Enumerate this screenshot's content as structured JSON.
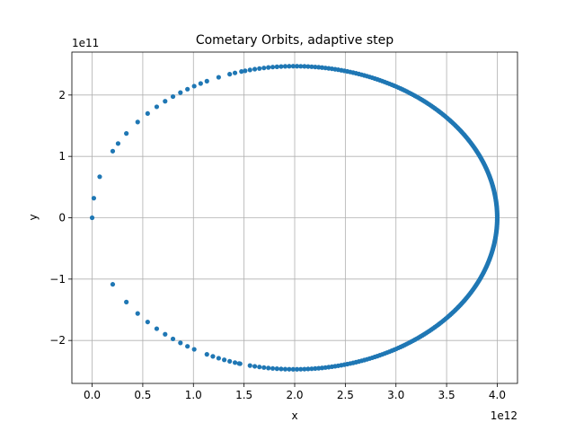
{
  "chart_data": {
    "type": "scatter",
    "title": "Cometary Orbits, adaptive step",
    "xlabel": "x",
    "ylabel": "y",
    "x_offset_label": "1e12",
    "y_offset_label": "1e11",
    "xlim": [
      -200000000000.0,
      4200000000000.0
    ],
    "ylim": [
      -270000000000.0,
      270000000000.0
    ],
    "x_ticks": [
      0,
      500000000000.0,
      1000000000000.0,
      1500000000000.0,
      2000000000000.0,
      2500000000000.0,
      3000000000000.0,
      3500000000000.0,
      4000000000000.0
    ],
    "x_tick_labels": [
      "0.0",
      "0.5",
      "1.0",
      "1.5",
      "2.0",
      "2.5",
      "3.0",
      "3.5",
      "4.0"
    ],
    "y_ticks": [
      -200000000000.0,
      -100000000000.0,
      0,
      100000000000.0,
      200000000000.0
    ],
    "y_tick_labels": [
      "−2",
      "−1",
      "0",
      "1",
      "2"
    ],
    "grid": true,
    "marker_color": "#1f77b4",
    "orbit": {
      "center_x": 2000000000000.0,
      "center_y": 0,
      "semi_major_axis": 2000000000000.0,
      "semi_minor_axis": 247000000000.0,
      "eccentricity": 0.992
    }
  }
}
